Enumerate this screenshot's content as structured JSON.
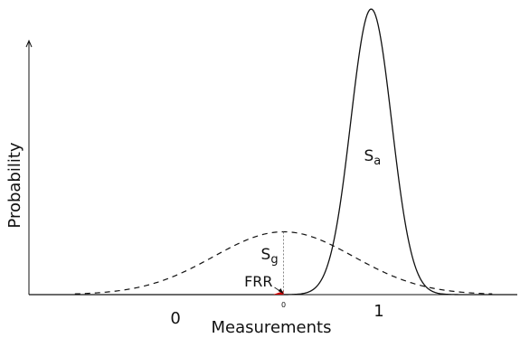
{
  "chart_data": {
    "type": "line",
    "title": "",
    "xlabel": "Measurements",
    "ylabel": "Probability",
    "xlim": [
      -0.72,
      1.62
    ],
    "ylim": [
      0,
      1.0
    ],
    "x_ticks": [
      {
        "value": 0,
        "label": "0"
      },
      {
        "value": 1,
        "label": "1"
      }
    ],
    "threshold": {
      "x": 0.5,
      "label": "0"
    },
    "grid": false,
    "legend": "none",
    "series": [
      {
        "name": "S_a",
        "style": "solid",
        "mean": 0.92,
        "std": 0.098,
        "peak": 1.0
      },
      {
        "name": "S_g",
        "style": "dashed",
        "mean": 0.5,
        "std": 0.335,
        "peak": 0.22
      }
    ],
    "annotations": [
      {
        "text": "S",
        "sub": "a",
        "near_series": "S_a"
      },
      {
        "text": "S",
        "sub": "g",
        "near_series": "S_g"
      },
      {
        "text": "FRR",
        "target_x": 0.5,
        "color": "#cc0000"
      }
    ],
    "colors": {
      "line": "#111111",
      "frr": "#cc0000",
      "guide": "#666666"
    }
  }
}
